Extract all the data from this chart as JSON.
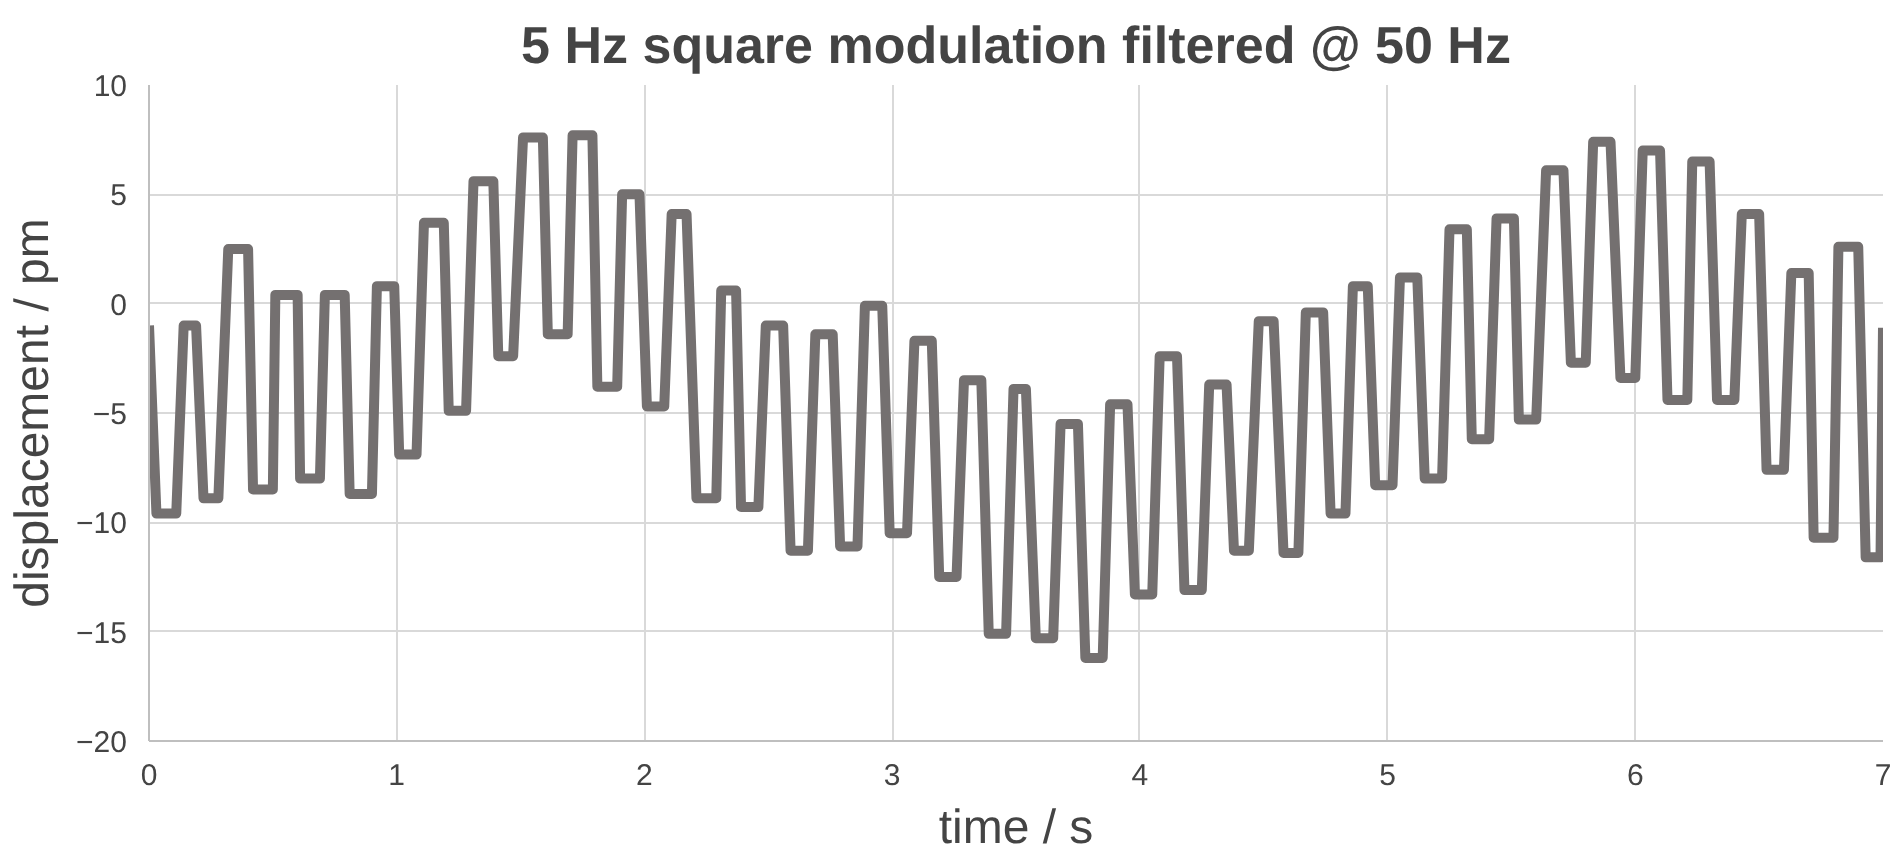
{
  "chart_data": {
    "type": "line",
    "title": "5 Hz square modulation filtered @ 50 Hz",
    "xlabel": "time / s",
    "ylabel": "displacement / pm",
    "xlim": [
      0,
      7
    ],
    "xticks": [
      0,
      1,
      2,
      3,
      4,
      5,
      6,
      7
    ],
    "ylim": [
      -20,
      10
    ],
    "yticks": [
      -20,
      -15,
      -10,
      -5,
      0,
      5,
      10
    ],
    "grid": true,
    "marker": "none",
    "line_style": "solid",
    "series": [
      {
        "color": "#747070",
        "x": [
          0.0,
          0.03,
          0.11,
          0.14,
          0.19,
          0.22,
          0.28,
          0.32,
          0.4,
          0.42,
          0.5,
          0.51,
          0.6,
          0.61,
          0.69,
          0.71,
          0.79,
          0.81,
          0.9,
          0.92,
          0.99,
          1.01,
          1.08,
          1.11,
          1.19,
          1.21,
          1.28,
          1.31,
          1.39,
          1.41,
          1.47,
          1.51,
          1.59,
          1.61,
          1.69,
          1.71,
          1.79,
          1.81,
          1.89,
          1.91,
          1.98,
          2.01,
          2.08,
          2.11,
          2.17,
          2.21,
          2.29,
          2.31,
          2.37,
          2.39,
          2.46,
          2.49,
          2.56,
          2.59,
          2.66,
          2.69,
          2.76,
          2.79,
          2.86,
          2.89,
          2.96,
          2.99,
          3.06,
          3.09,
          3.16,
          3.19,
          3.26,
          3.29,
          3.36,
          3.39,
          3.46,
          3.49,
          3.54,
          3.58,
          3.65,
          3.68,
          3.75,
          3.78,
          3.85,
          3.88,
          3.95,
          3.98,
          4.05,
          4.08,
          4.15,
          4.18,
          4.25,
          4.28,
          4.35,
          4.38,
          4.44,
          4.48,
          4.54,
          4.58,
          4.64,
          4.67,
          4.74,
          4.77,
          4.83,
          4.86,
          4.92,
          4.95,
          5.02,
          5.05,
          5.12,
          5.15,
          5.22,
          5.25,
          5.32,
          5.34,
          5.41,
          5.44,
          5.51,
          5.53,
          5.6,
          5.64,
          5.71,
          5.74,
          5.8,
          5.83,
          5.9,
          5.94,
          6.0,
          6.03,
          6.1,
          6.13,
          6.21,
          6.23,
          6.3,
          6.33,
          6.4,
          6.43,
          6.5,
          6.53,
          6.6,
          6.63,
          6.7,
          6.72,
          6.8,
          6.82,
          6.9,
          6.93,
          6.99,
          7.0
        ],
        "values": [
          -1.0,
          -9.6,
          -9.6,
          -1.0,
          -1.0,
          -8.9,
          -8.9,
          2.5,
          2.5,
          -8.5,
          -8.5,
          0.4,
          0.4,
          -8.0,
          -8.0,
          0.4,
          0.4,
          -8.7,
          -8.7,
          0.8,
          0.8,
          -6.9,
          -6.9,
          3.7,
          3.7,
          -4.9,
          -4.9,
          5.6,
          5.6,
          -2.4,
          -2.4,
          7.6,
          7.6,
          -1.4,
          -1.4,
          7.7,
          7.7,
          -3.8,
          -3.8,
          5.0,
          5.0,
          -4.7,
          -4.7,
          4.1,
          4.1,
          -8.9,
          -8.9,
          0.6,
          0.6,
          -9.3,
          -9.3,
          -1.0,
          -1.0,
          -11.3,
          -11.3,
          -1.4,
          -1.4,
          -11.1,
          -11.1,
          -0.1,
          -0.1,
          -10.5,
          -10.5,
          -1.7,
          -1.7,
          -12.5,
          -12.5,
          -3.5,
          -3.5,
          -15.1,
          -15.1,
          -3.9,
          -3.9,
          -15.3,
          -15.3,
          -5.5,
          -5.5,
          -16.2,
          -16.2,
          -4.6,
          -4.6,
          -13.3,
          -13.3,
          -2.4,
          -2.4,
          -13.1,
          -13.1,
          -3.7,
          -3.7,
          -11.3,
          -11.3,
          -0.8,
          -0.8,
          -11.4,
          -11.4,
          -0.4,
          -0.4,
          -9.6,
          -9.6,
          0.8,
          0.8,
          -8.3,
          -8.3,
          1.2,
          1.2,
          -8.0,
          -8.0,
          3.4,
          3.4,
          -6.2,
          -6.2,
          3.9,
          3.9,
          -5.3,
          -5.3,
          6.1,
          6.1,
          -2.7,
          -2.7,
          7.4,
          7.4,
          -3.4,
          -3.4,
          7.0,
          7.0,
          -4.4,
          -4.4,
          6.5,
          6.5,
          -4.4,
          -4.4,
          4.1,
          4.1,
          -7.6,
          -7.6,
          1.4,
          1.4,
          -10.7,
          -10.7,
          2.6,
          2.6,
          -11.6,
          -11.6,
          -1.1
        ]
      }
    ]
  }
}
